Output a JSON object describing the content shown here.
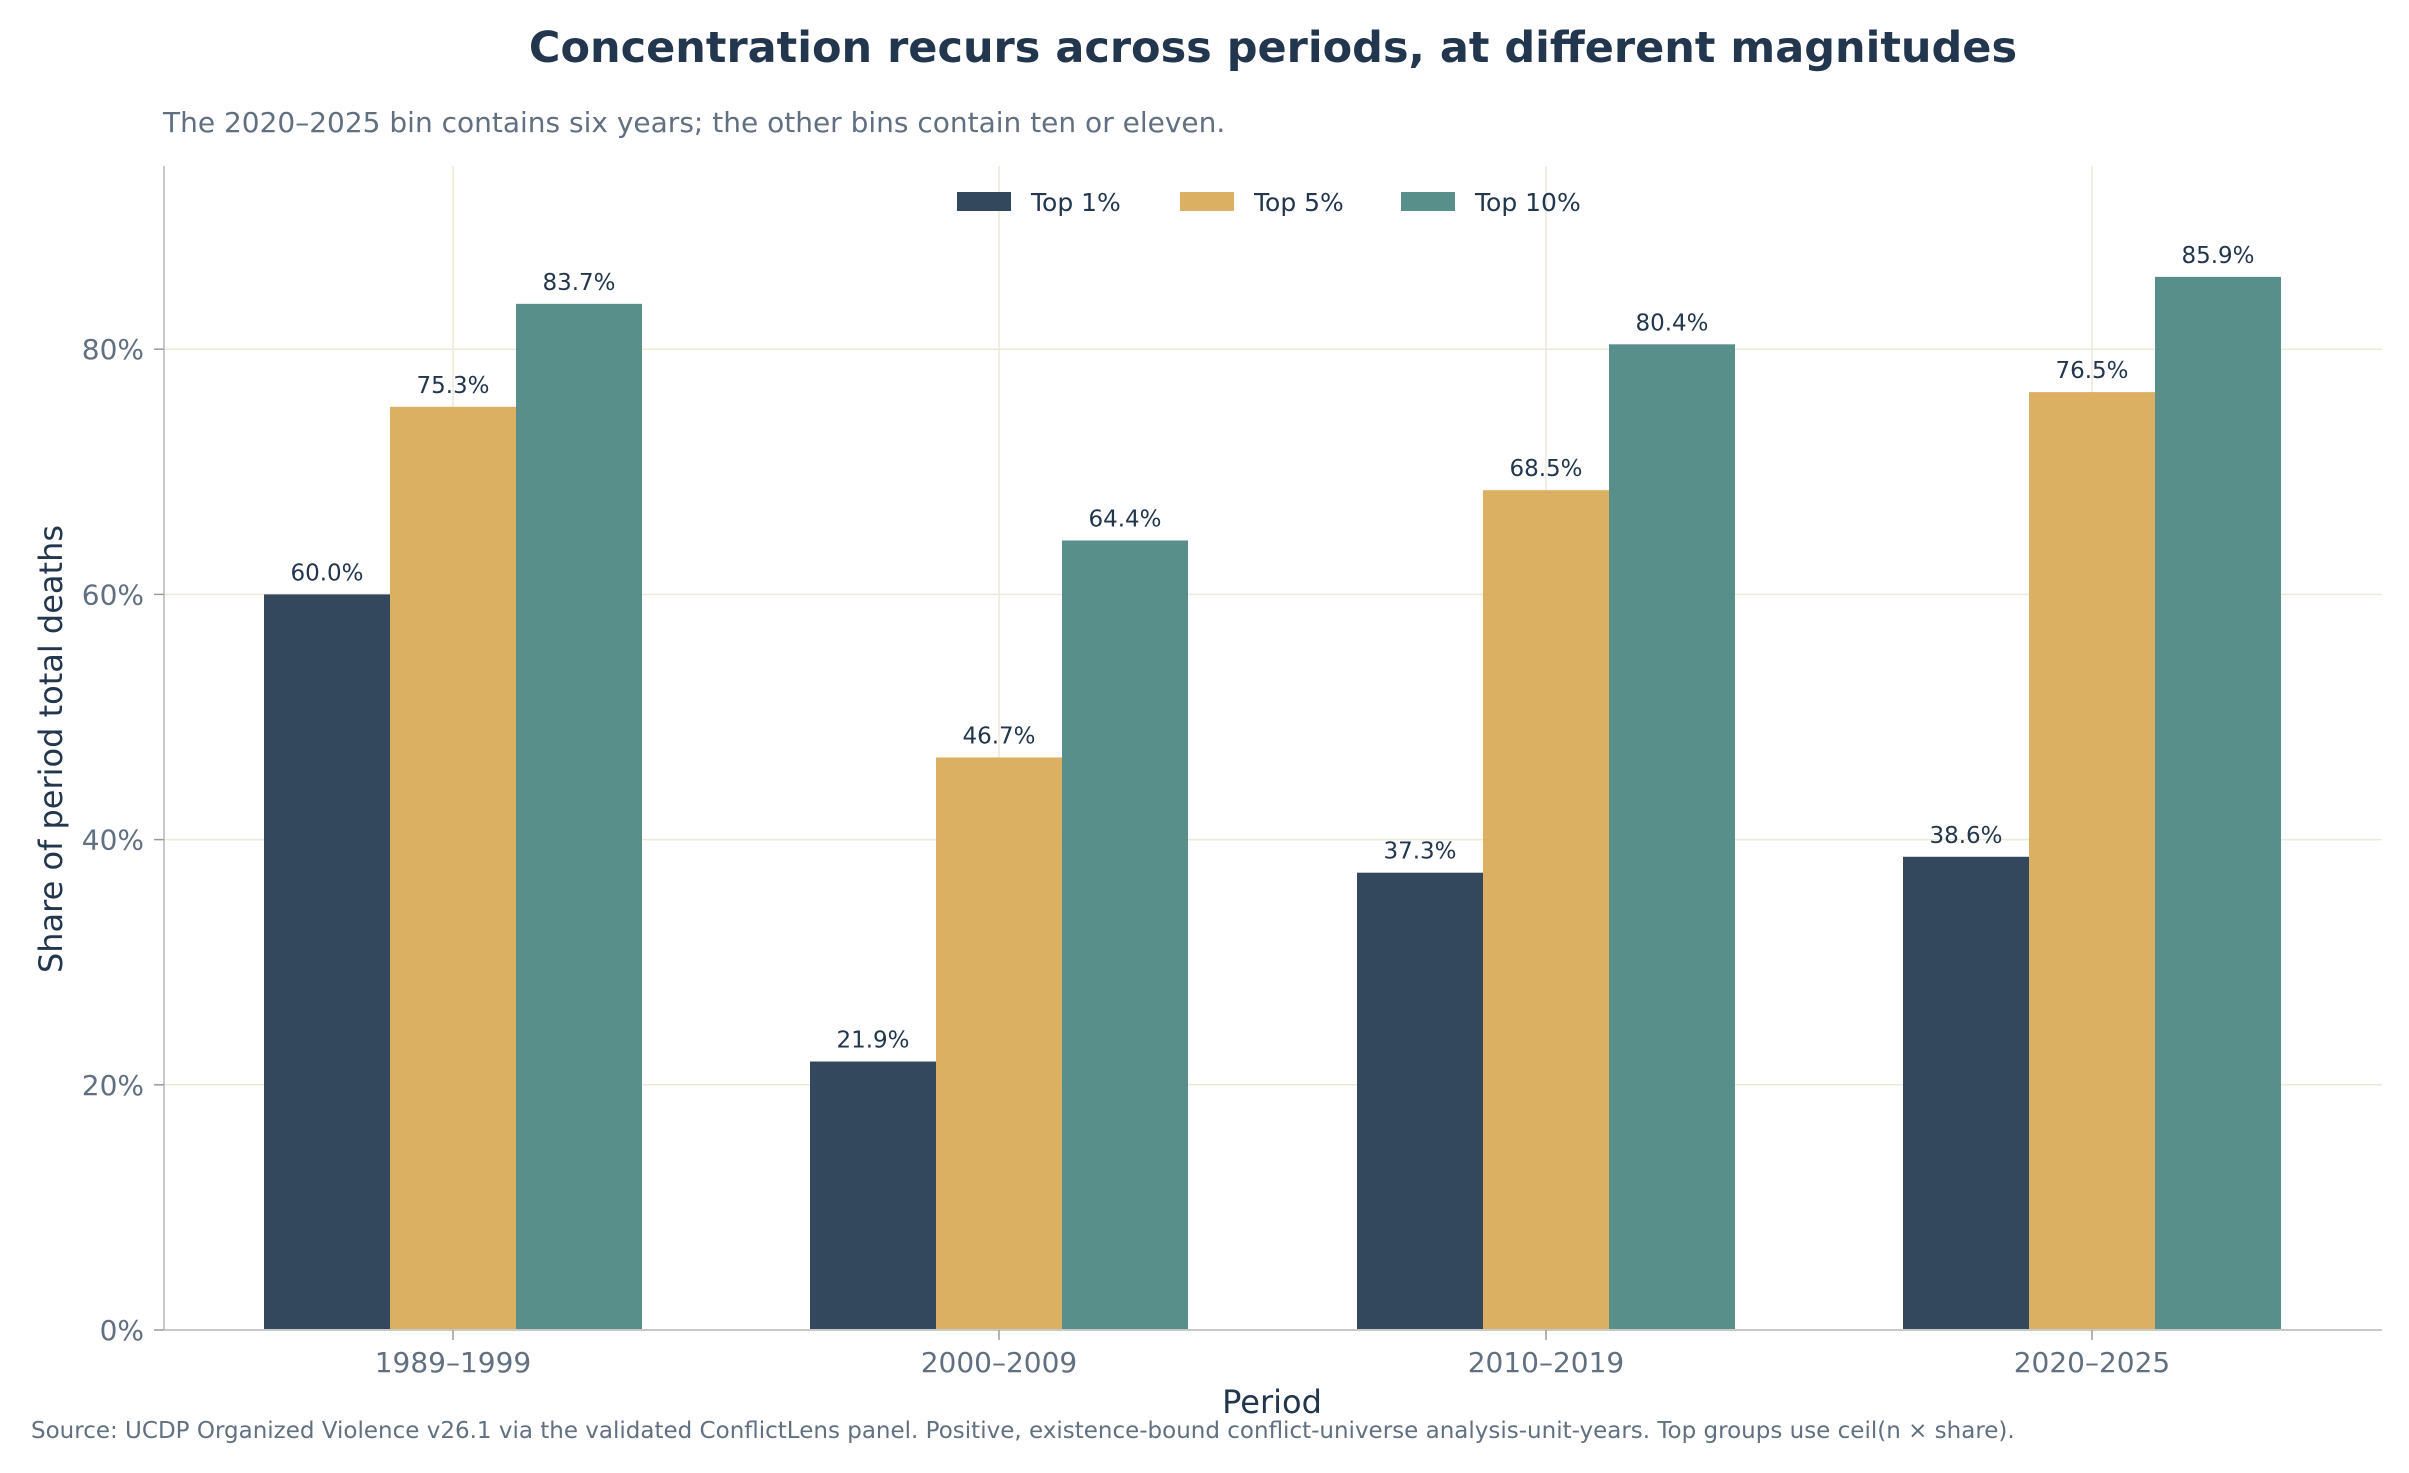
{
  "colors": {
    "top1": "#22384f",
    "top5": "#d9a955",
    "top10": "#4b8581",
    "grid": "#ece9d8",
    "axis": "#c8c8c8",
    "title": "#22364d",
    "muted": "#617080"
  },
  "chart_data": {
    "type": "bar",
    "title": "Concentration recurs across periods, at different magnitudes",
    "subtitle": "The 2020–2025 bin contains six years; the other bins contain ten or eleven.",
    "xlabel": "Period",
    "ylabel": "Share of period total deaths",
    "source": "Source: UCDP Organized Violence v26.1 via the validated ConflictLens panel. Positive, existence-bound conflict-universe analysis-unit-years. Top groups use ceil(n × share).",
    "categories": [
      "1989–1999",
      "2000–2009",
      "2010–2019",
      "2020–2025"
    ],
    "ylim": [
      0,
      95
    ],
    "yticks": [
      0,
      20,
      40,
      60,
      80
    ],
    "ytick_labels": [
      "0%",
      "20%",
      "40%",
      "60%",
      "80%"
    ],
    "grid": true,
    "legend_position": "top-center",
    "series": [
      {
        "name": "Top 1%",
        "values": [
          60.0,
          21.9,
          37.3,
          38.6
        ],
        "labels": [
          "60.0%",
          "21.9%",
          "37.3%",
          "38.6%"
        ]
      },
      {
        "name": "Top 5%",
        "values": [
          75.3,
          46.7,
          68.5,
          76.5
        ],
        "labels": [
          "75.3%",
          "46.7%",
          "68.5%",
          "76.5%"
        ]
      },
      {
        "name": "Top 10%",
        "values": [
          83.7,
          64.4,
          80.4,
          85.9
        ],
        "labels": [
          "83.7%",
          "64.4%",
          "80.4%",
          "85.9%"
        ]
      }
    ]
  }
}
